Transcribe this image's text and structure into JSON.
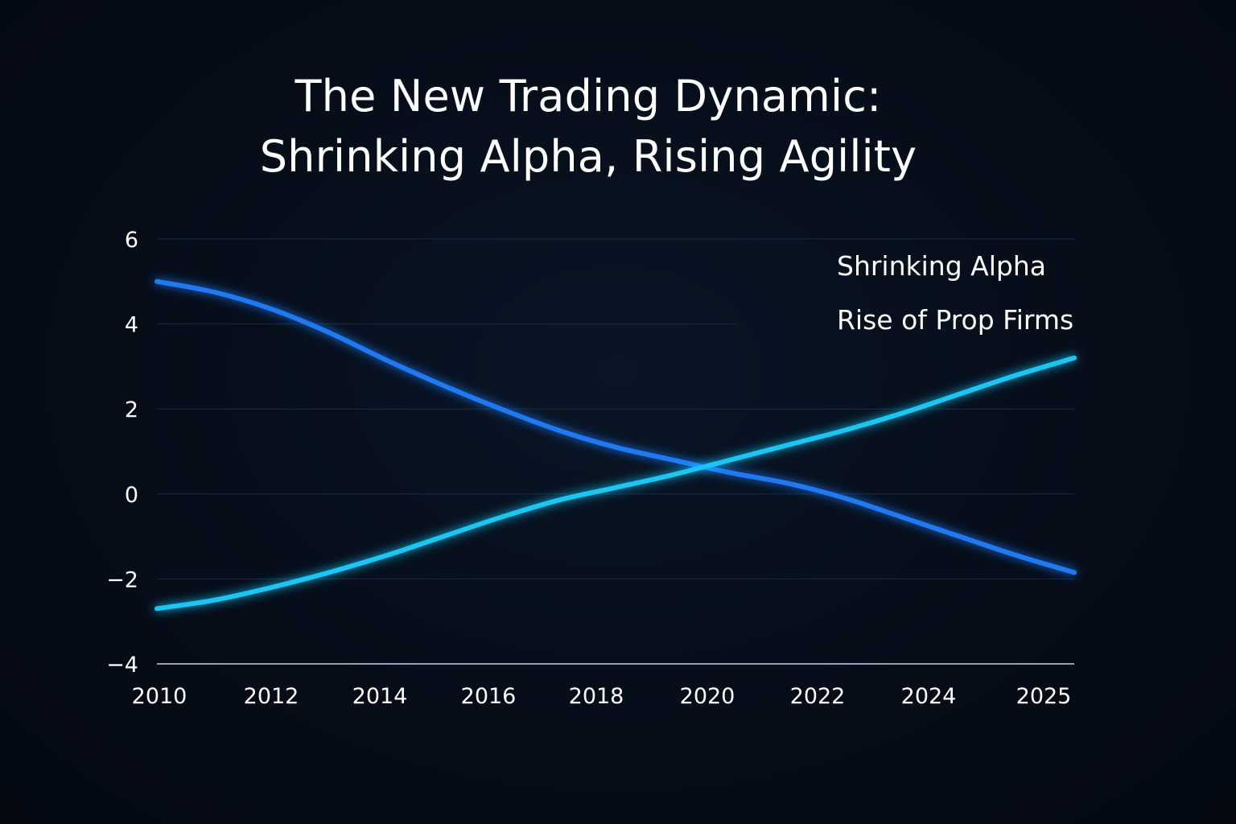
{
  "title_lines": [
    "The New Trading Dynamic:",
    "Shrinking Alpha, Rising Agility"
  ],
  "chart_data": {
    "type": "line",
    "title": "The New Trading Dynamic: Shrinking Alpha, Rising Agility",
    "xlabel": "",
    "ylabel": "",
    "x_ticks": [
      "2010",
      "2012",
      "2014",
      "2016",
      "2018",
      "2020",
      "2022",
      "2024",
      "2025"
    ],
    "y_ticks": [
      6,
      4,
      2,
      0,
      -2,
      -4
    ],
    "ylim": [
      -4,
      6
    ],
    "grid": true,
    "legend_position": "top-right",
    "x": [
      2010,
      2011,
      2012,
      2013,
      2014,
      2015,
      2016,
      2017,
      2018,
      2019,
      2020,
      2021,
      2022,
      2023,
      2024,
      2025,
      2026
    ],
    "series": [
      {
        "name": "Shrinking Alpha",
        "color": "#1f7af5",
        "values": [
          5.0,
          4.75,
          4.35,
          3.8,
          3.15,
          2.55,
          2.0,
          1.5,
          1.1,
          0.8,
          0.5,
          0.25,
          -0.1,
          -0.55,
          -1.0,
          -1.45,
          -1.85
        ]
      },
      {
        "name": "Rise of Prop Firms",
        "color": "#16c8f5",
        "values": [
          -2.7,
          -2.5,
          -2.2,
          -1.85,
          -1.45,
          -1.0,
          -0.55,
          -0.15,
          0.15,
          0.45,
          0.8,
          1.15,
          1.5,
          1.9,
          2.35,
          2.8,
          3.2
        ]
      }
    ]
  }
}
